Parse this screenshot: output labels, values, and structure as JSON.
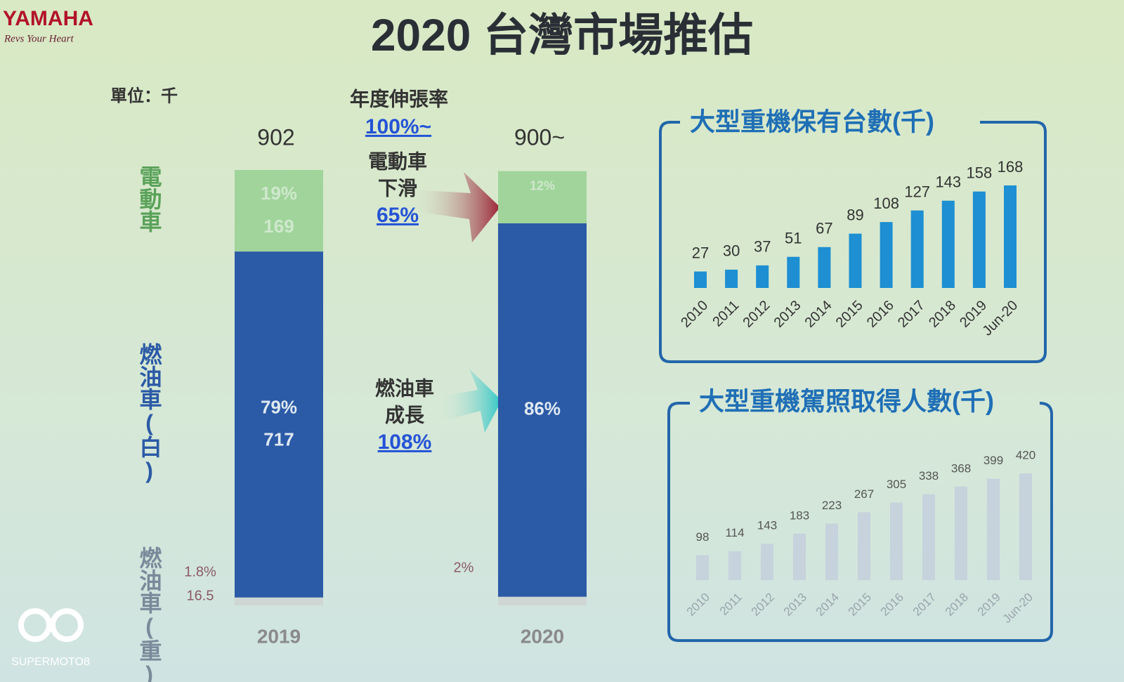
{
  "logo": {
    "brand": "YAMAHA",
    "slogan": "Revs Your Heart"
  },
  "watermark": "SUPERMOTO8",
  "title": "2020 台灣市場推估",
  "chart_data": [
    {
      "type": "stacked_bar",
      "unit": "單位：千",
      "categories": [
        "2019",
        "2020"
      ],
      "total_labels": [
        "902",
        "900~"
      ],
      "series": [
        {
          "name": "燃油車(重)",
          "color": "#cfd7d5",
          "values": [
            16.5,
            18
          ],
          "value_labels": [
            "16.5",
            null
          ],
          "percent_labels": [
            "1.8%",
            "2%"
          ]
        },
        {
          "name": "燃油車(白)",
          "color": "#2b5aa6",
          "values": [
            717,
            774
          ],
          "value_labels": [
            "717",
            null
          ],
          "percent_labels": [
            "79%",
            "86%"
          ]
        },
        {
          "name": "電動車",
          "color": "#a0d49b",
          "values": [
            169,
            108
          ],
          "value_labels": [
            "169",
            null
          ],
          "percent_labels": [
            "19%",
            "12%"
          ]
        }
      ],
      "annotations": {
        "heading": "年度伸張率",
        "total_rate": "100%~",
        "ev": {
          "lines": [
            "電動車",
            "下滑"
          ],
          "rate": "65%"
        },
        "ice": {
          "lines": [
            "燃油車",
            "成長"
          ],
          "rate": "108%"
        }
      }
    },
    {
      "type": "bar",
      "title": "大型重機保有台數(千)",
      "color": "#1d8fd2",
      "categories": [
        "2010",
        "2011",
        "2012",
        "2013",
        "2014",
        "2015",
        "2016",
        "2017",
        "2018",
        "2019",
        "Jun-20"
      ],
      "values": [
        27,
        30,
        37,
        51,
        67,
        89,
        108,
        127,
        143,
        158,
        168
      ]
    },
    {
      "type": "bar",
      "title": "大型重機駕照取得人數(千)",
      "color": "#c6d2dc",
      "categories": [
        "2010",
        "2011",
        "2012",
        "2013",
        "2014",
        "2015",
        "2016",
        "2017",
        "2018",
        "2019",
        "Jun-20"
      ],
      "values": [
        98,
        114,
        143,
        183,
        223,
        267,
        305,
        338,
        368,
        399,
        420
      ]
    }
  ]
}
